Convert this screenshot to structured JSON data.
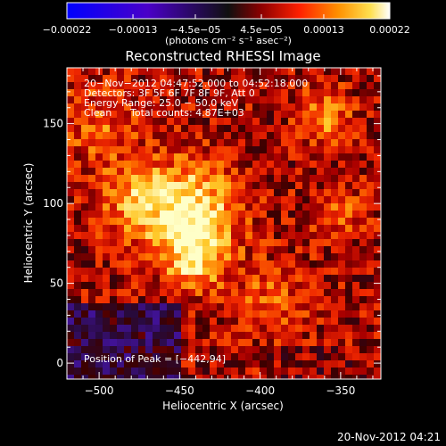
{
  "chart_data": {
    "type": "heatmap",
    "title": "Reconstructed RHESSI Image",
    "xlabel": "Heliocentric X (arcsec)",
    "ylabel": "Heliocentric Y (arcsec)",
    "xlim": [
      -520,
      -325
    ],
    "ylim": [
      -10,
      185
    ],
    "xticks": [
      -500,
      -450,
      -400,
      -350
    ],
    "yticks": [
      0,
      50,
      100,
      150
    ],
    "xtick_labels": [
      "−500",
      "−450",
      "−400",
      "−350"
    ],
    "ytick_labels": [
      "0",
      "50",
      "100",
      "150"
    ],
    "colorbar": {
      "range": [
        -0.00022,
        0.00022
      ],
      "ticks": [
        -0.00022,
        -0.00013,
        -4.5e-05,
        4.5e-05,
        0.00013,
        0.00022
      ],
      "tick_labels": [
        "−0.00022",
        "−0.00013",
        "−4.5e−05",
        "4.5e−05",
        "0.00013",
        "0.00022"
      ],
      "unit_label": "(photons cm⁻² s⁻¹ asec⁻²)"
    },
    "annotations": {
      "time_range": "20−Nov−2012 04:47:52.000 to 04:52:18.000",
      "detectors": "Detectors: 3F 5F 6F 7F 8F 9F, Att 0",
      "energy": "Energy Range: 25.0 − 50.0 keV",
      "clean": "Clean",
      "total_counts": "Total counts: 4.87E+03",
      "peak": "Position of Peak = [−442,94]"
    },
    "peak_position": [
      -442,
      94
    ]
  },
  "footer": {
    "timestamp": "20-Nov-2012 04:21"
  },
  "colors": {
    "background": "#000000",
    "colormap": "red-temperature"
  }
}
